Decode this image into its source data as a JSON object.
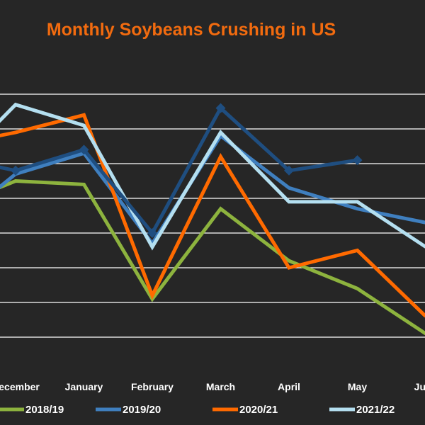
{
  "chart_data": {
    "type": "line",
    "title": "Monthly Soybeans Crushing in US",
    "title_color": "#f26b0f",
    "background": "#262626",
    "grid": true,
    "grid_color": "#ffffff",
    "legend_position": "bottom",
    "categories": [
      "December",
      "January",
      "February",
      "March",
      "April",
      "May",
      "June"
    ],
    "x": [
      0,
      1,
      2,
      3,
      4,
      5,
      6
    ],
    "ylim": [
      0,
      10
    ],
    "series": [
      {
        "name": "2018/19",
        "color": "#8db33e",
        "marker": false,
        "x": [
          -0.25,
          0,
          1,
          2,
          3,
          4,
          5,
          6
        ],
        "values": [
          5.3,
          5.5,
          5.4,
          2.1,
          4.7,
          3.2,
          2.4,
          1.1
        ]
      },
      {
        "name": "2019/20",
        "color": "#3f7fbf",
        "marker": false,
        "x": [
          -0.25,
          0,
          1,
          2,
          3,
          4,
          5,
          6
        ],
        "values": [
          5.3,
          5.7,
          6.3,
          3.7,
          6.8,
          5.3,
          4.7,
          4.3
        ]
      },
      {
        "name": "2020/21",
        "color": "#ff6a00",
        "marker": false,
        "x": [
          -0.25,
          0,
          1,
          2,
          3,
          4,
          5,
          6
        ],
        "values": [
          6.8,
          6.9,
          7.4,
          2.2,
          6.2,
          3.0,
          3.5,
          1.6
        ]
      },
      {
        "name": "2021/22",
        "color": "#b4dff0",
        "marker": false,
        "x": [
          -0.25,
          0,
          1,
          2,
          3,
          4,
          5,
          6
        ],
        "values": [
          7.2,
          7.7,
          7.1,
          3.6,
          6.9,
          4.9,
          4.9,
          3.6
        ]
      },
      {
        "name": "",
        "color": "#1f4e80",
        "marker": true,
        "x": [
          -0.25,
          0,
          1,
          2,
          3,
          4,
          5
        ],
        "values": [
          5.9,
          5.8,
          6.4,
          4.0,
          7.6,
          5.8,
          6.1
        ]
      }
    ]
  }
}
